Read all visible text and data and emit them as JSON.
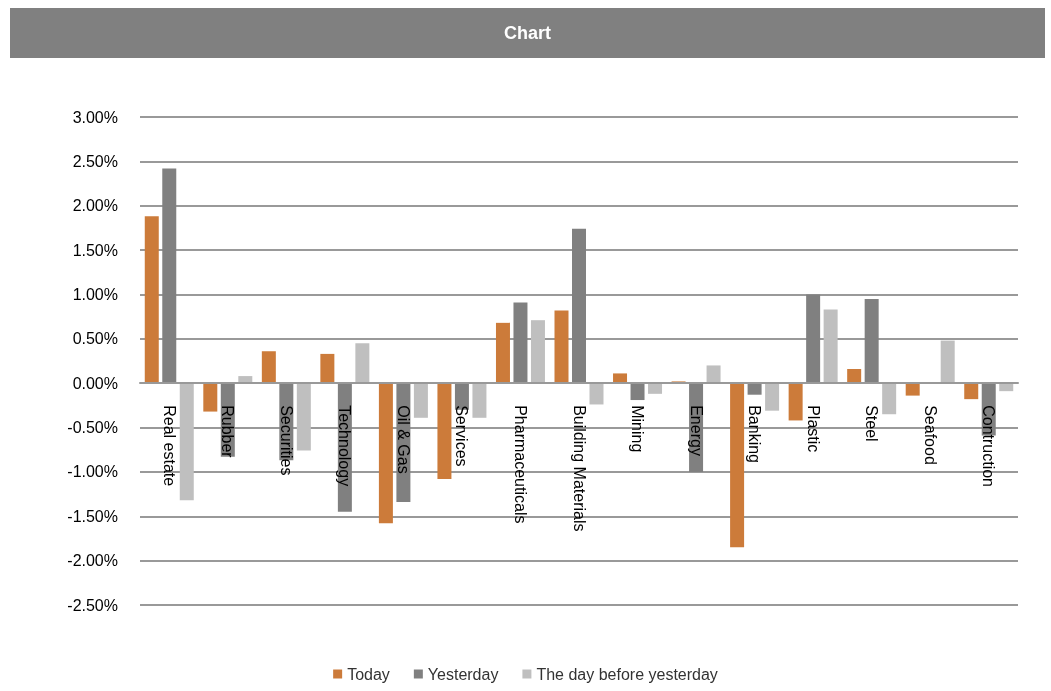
{
  "chart_data": {
    "type": "bar",
    "title": "Chart",
    "categories": [
      "Real estate",
      "Rubber",
      "Securities",
      "Technology",
      "Oil & Gas",
      "Services",
      "Pharmaceuticals",
      "Building Materials",
      "Mining",
      "Energy",
      "Banking",
      "Plastic",
      "Steel",
      "Seafood",
      "Contruction"
    ],
    "series": [
      {
        "name": "Today",
        "color": "#cc7b3a",
        "values": [
          1.88,
          -0.32,
          0.36,
          0.33,
          -1.58,
          -1.08,
          0.68,
          0.82,
          0.11,
          0.02,
          -1.85,
          -0.42,
          0.16,
          -0.14,
          -0.18
        ]
      },
      {
        "name": "Yesterday",
        "color": "#808080",
        "values": [
          2.42,
          -0.83,
          -0.87,
          -1.45,
          -1.34,
          -0.3,
          0.91,
          1.74,
          -0.19,
          -1.0,
          -0.13,
          1.0,
          0.95,
          0,
          -0.59
        ]
      },
      {
        "name": "The day before yesterday",
        "color": "#bfbfbf",
        "values": [
          -1.32,
          0.08,
          -0.76,
          0.45,
          -0.39,
          -0.39,
          0.71,
          -0.24,
          -0.12,
          0.2,
          -0.31,
          0.83,
          -0.35,
          0.48,
          -0.09
        ]
      }
    ],
    "ylim": [
      -2.5,
      3
    ],
    "yticks": [
      {
        "value": -2.5,
        "label": "-2.50%"
      },
      {
        "value": -2,
        "label": "-2.00%"
      },
      {
        "value": -1.5,
        "label": "-1.50%"
      },
      {
        "value": -1,
        "label": "-1.00%"
      },
      {
        "value": -0.5,
        "label": "-0.50%"
      },
      {
        "value": 0,
        "label": "0.00%"
      },
      {
        "value": 0.5,
        "label": "0.50%"
      },
      {
        "value": 1,
        "label": "1.00%"
      },
      {
        "value": 1.5,
        "label": "1.50%"
      },
      {
        "value": 2,
        "label": "2.00%"
      },
      {
        "value": 2.5,
        "label": "2.50%"
      },
      {
        "value": 3,
        "label": "3.00%"
      }
    ],
    "grid": "y",
    "legend": "bottom"
  }
}
